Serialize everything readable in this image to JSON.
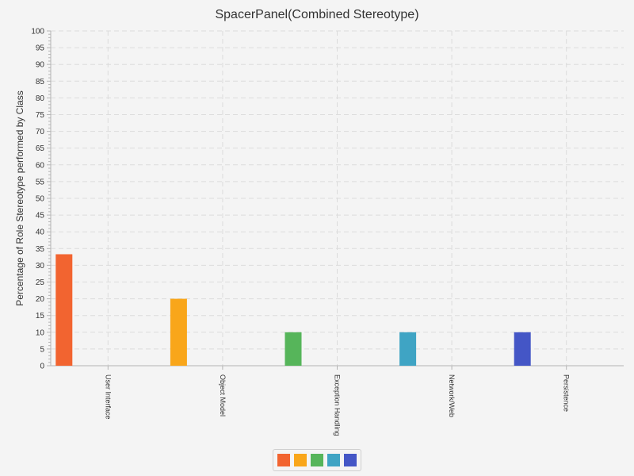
{
  "chart_data": {
    "type": "bar",
    "title": "SpacerPanel(Combined Stereotype)",
    "ylabel": "Percentage of Role Stereotype performed by Class",
    "xlabel": "",
    "ylim": [
      0,
      100
    ],
    "ytick_step": 5,
    "categories": [
      "User Interface",
      "Object Model",
      "Exception Handling",
      "Network/Web",
      "Persistence"
    ],
    "values": [
      33.3,
      20,
      10,
      10,
      10
    ],
    "colors": [
      "#f26430",
      "#f9a61a",
      "#56b55a",
      "#3fa4c4",
      "#4456c6"
    ],
    "grid": true,
    "legend_placement": "bottom-center"
  }
}
